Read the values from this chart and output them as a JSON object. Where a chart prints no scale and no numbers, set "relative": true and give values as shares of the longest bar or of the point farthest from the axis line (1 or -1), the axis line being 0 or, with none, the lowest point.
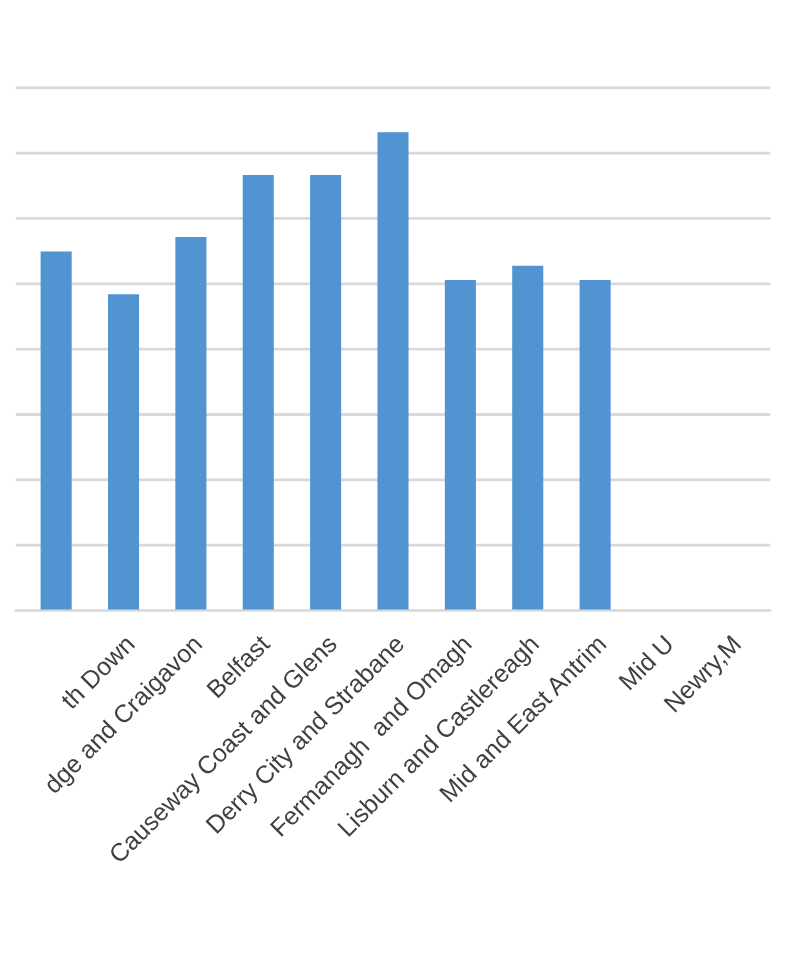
{
  "chart_data": {
    "type": "bar",
    "relative": true,
    "grid": "y",
    "color": "#5294d2",
    "categories": [
      null,
      "th Down",
      "dge and Craigavon",
      "Belfast",
      "Causeway Coast and Glens",
      "Derry City and Strabane",
      "Fermanagh  and Omagh",
      "Lisburn and Castlereagh",
      "Mid and East Antrim",
      "Mid U",
      "Newry,M"
    ],
    "values": [
      0.75,
      0.66,
      0.78,
      0.91,
      0.91,
      1,
      0.69,
      0.72,
      0.69,
      null,
      null
    ]
  }
}
